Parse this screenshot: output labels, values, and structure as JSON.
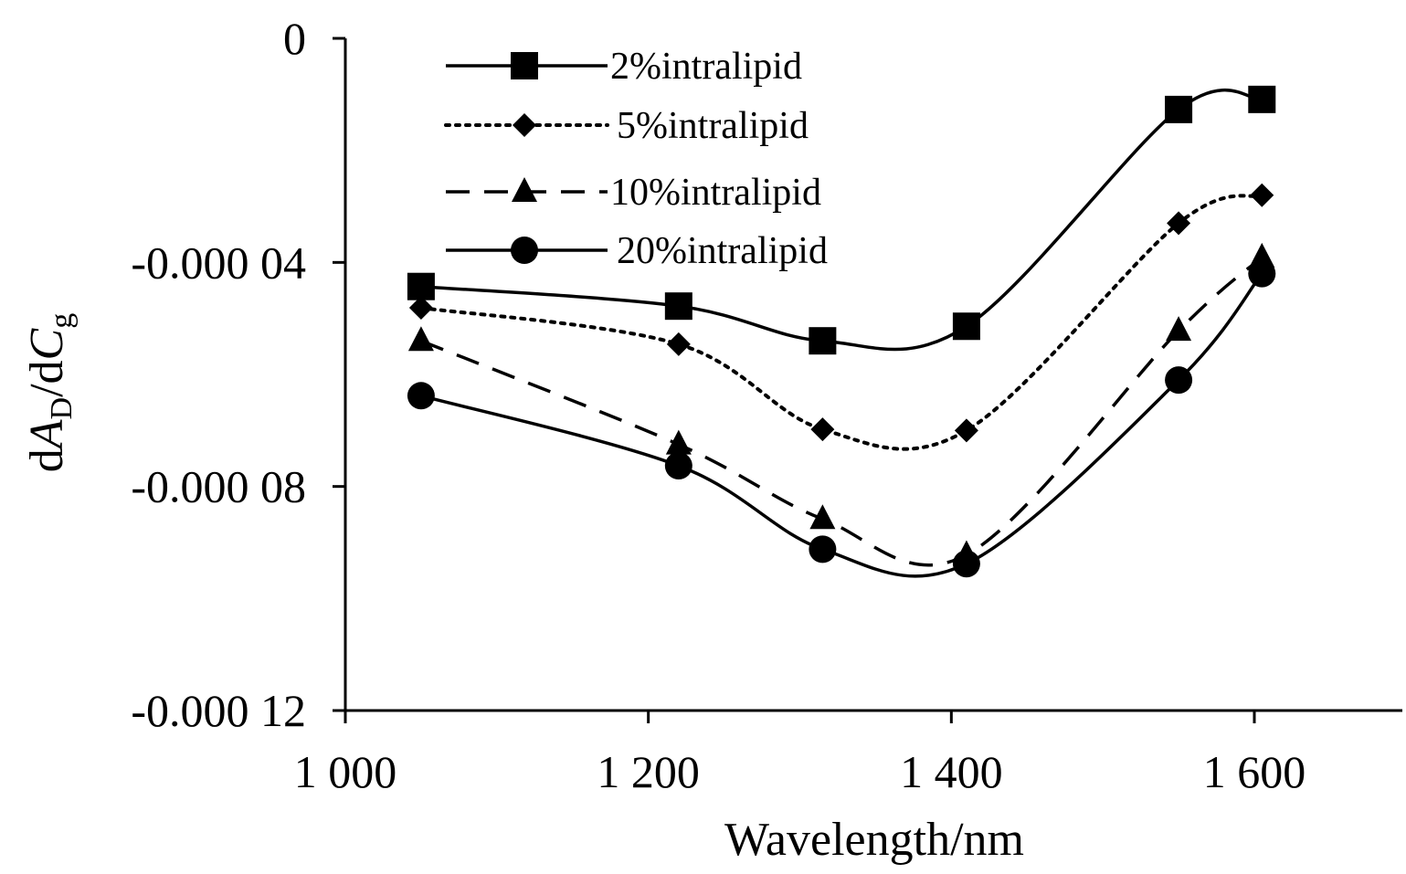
{
  "chart_data": {
    "type": "line",
    "xlabel": "Wavelength/nm",
    "ylabel": {
      "main": "dA",
      "sub1": "D",
      "mid": "/dC",
      "sub2": "g"
    },
    "xlim": [
      1000,
      1700
    ],
    "ylim": [
      -0.00012,
      0
    ],
    "xticks": [
      1000,
      1200,
      1400,
      1600
    ],
    "xtick_labels": [
      "1 000",
      "1 200",
      "1 400",
      "1 600"
    ],
    "yticks": [
      0,
      -4e-05,
      -8e-05,
      -0.00012
    ],
    "ytick_labels": [
      "0",
      "-0.000 04",
      "-0.000 08",
      "-0.000 12"
    ],
    "x": [
      1050,
      1220,
      1315,
      1410,
      1550,
      1605
    ],
    "series": [
      {
        "name": "2%intralipid",
        "marker": "square",
        "dash": "solid",
        "values": [
          -4.43e-05,
          -4.78e-05,
          -5.4e-05,
          -5.14e-05,
          -1.27e-05,
          -1.09e-05
        ]
      },
      {
        "name": "5%intralipid",
        "marker": "diamond",
        "dash": "dotted",
        "values": [
          -4.81e-05,
          -5.46e-05,
          -6.98e-05,
          -7e-05,
          -3.3e-05,
          -2.8e-05
        ]
      },
      {
        "name": "10%intralipid",
        "marker": "triangle",
        "dash": "dashed",
        "values": [
          -5.4e-05,
          -7.25e-05,
          -8.58e-05,
          -9.22e-05,
          -5.22e-05,
          -3.91e-05
        ]
      },
      {
        "name": "20%intralipid",
        "marker": "circle",
        "dash": "solid",
        "values": [
          -6.38e-05,
          -7.63e-05,
          -9.12e-05,
          -9.38e-05,
          -6.1e-05,
          -4.2e-05
        ]
      }
    ]
  }
}
